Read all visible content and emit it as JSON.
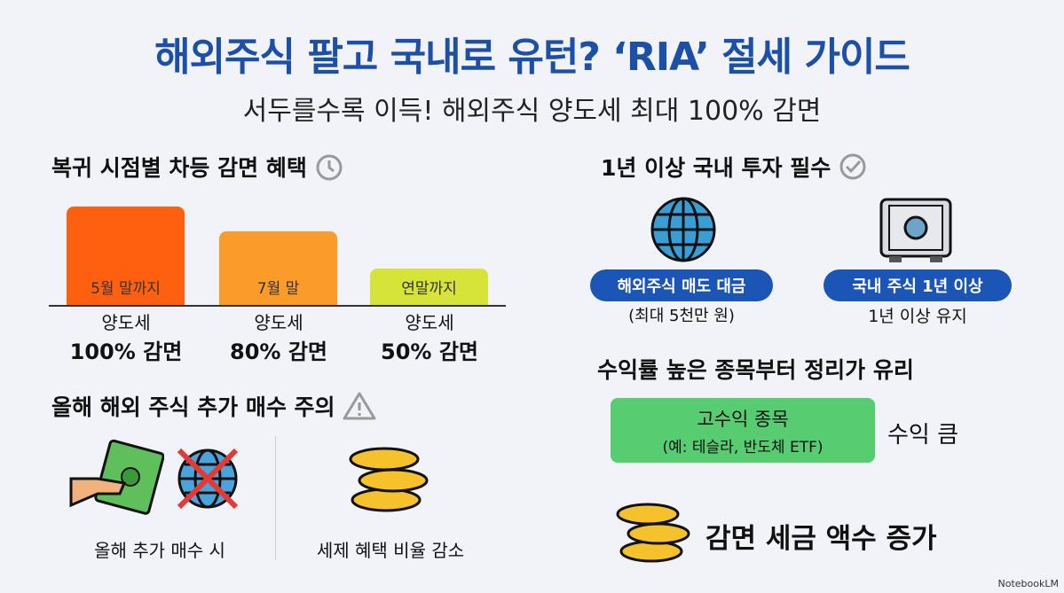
{
  "title": "해외주식 팔고 국내로 유턴? ‘RIA’ 절세 가이드",
  "subtitle": "서두를수록 이득! 해외주식 양도세 최대 100% 감면",
  "section1": {
    "heading": "복귀 시점별 차등 감면 혜택",
    "icon": "alarm-clock-icon",
    "bars": [
      {
        "label": "5월 말까지",
        "value": 100,
        "cap1": "양도세",
        "cap2": "100% 감면",
        "color": "#ff6010"
      },
      {
        "label": "7월 말",
        "value": 80,
        "cap1": "양도세",
        "cap2": "80% 감면",
        "color": "#fb9b2a"
      },
      {
        "label": "연말까지",
        "value": 50,
        "cap1": "양도세",
        "cap2": "50% 감면",
        "color": "#d6e338"
      }
    ]
  },
  "section2": {
    "heading": "1년 이상 국내 투자 필수",
    "icon": "check-circle-icon",
    "left": {
      "pill": "해외주식 매도 대금",
      "sub": "(최대 5천만 원)"
    },
    "right": {
      "pill": "국내 주식 1년 이상",
      "sub": "1년 이상 유지"
    }
  },
  "section3": {
    "heading": "올해 해외 주식 추가 매수 주의",
    "icon": "warning-icon",
    "left": "올해 추가 매수 시",
    "right": "세제 혜택 비율 감소"
  },
  "section4": {
    "heading": "수익률 높은 종목부터 정리가 유리",
    "box_title": "고수익 종목",
    "box_sub": "(예: 테슬라, 반도체 ETF)",
    "side": "수익 큼",
    "bottom": "감면 세금 액수 증가"
  },
  "watermark": "NotebookLM"
}
